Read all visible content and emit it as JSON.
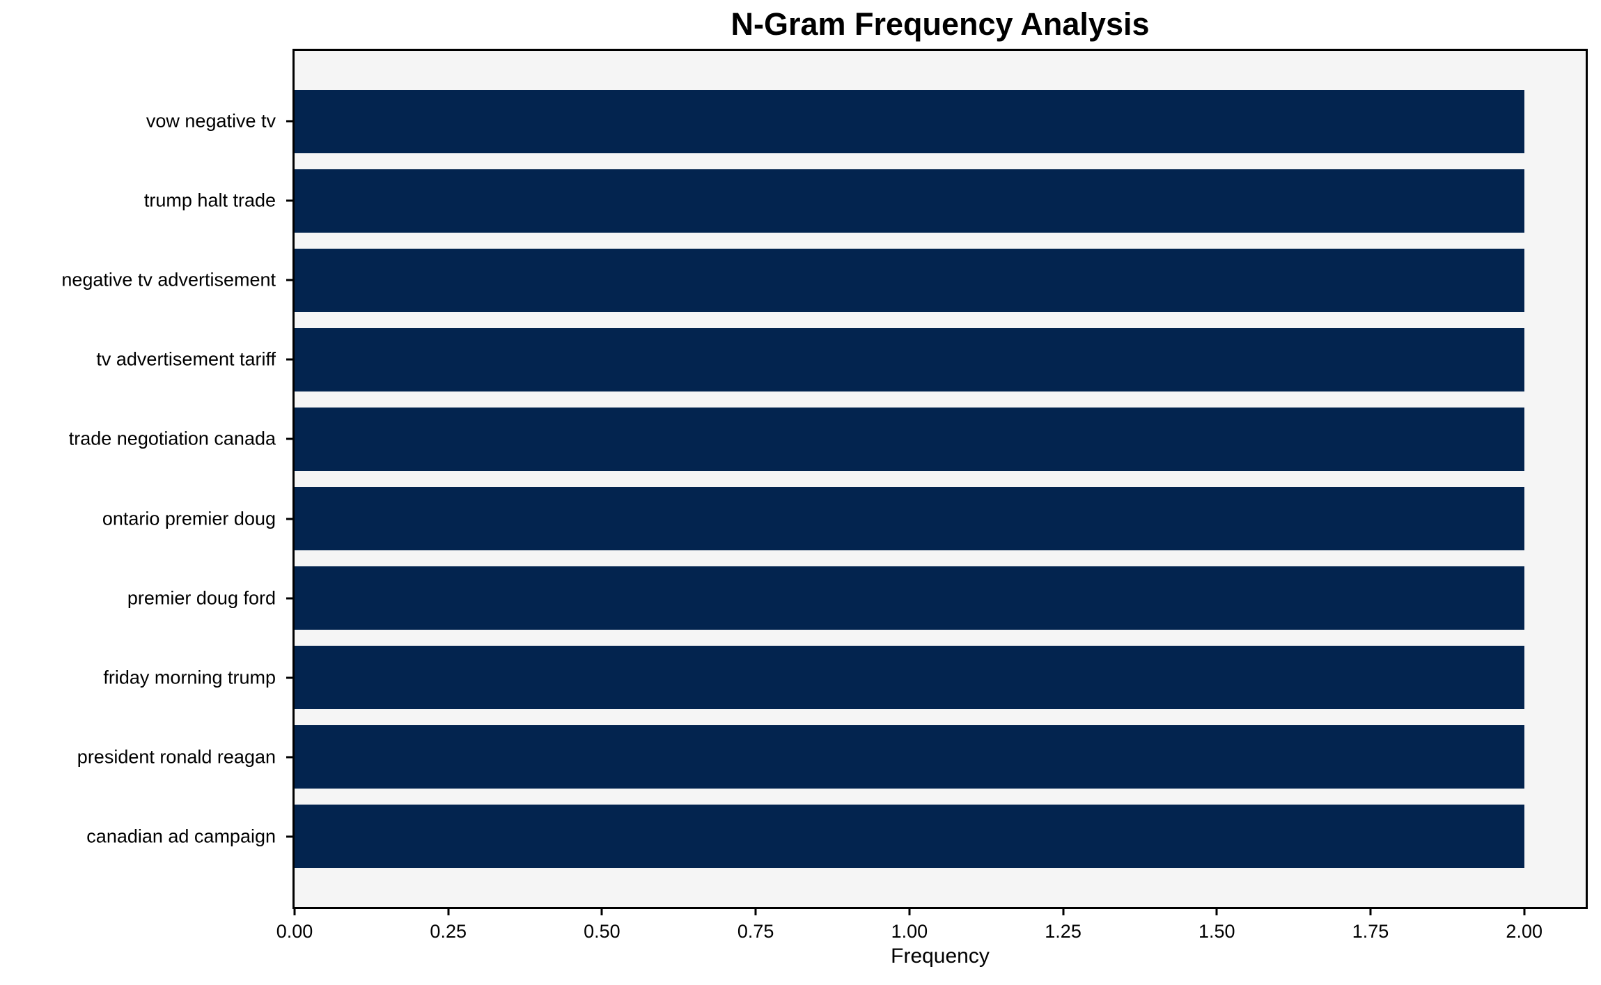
{
  "chart_data": {
    "type": "bar",
    "orientation": "horizontal",
    "title": "N-Gram Frequency Analysis",
    "xlabel": "Frequency",
    "categories": [
      "vow negative tv",
      "trump halt trade",
      "negative tv advertisement",
      "tv advertisement tariff",
      "trade negotiation canada",
      "ontario premier doug",
      "premier doug ford",
      "friday morning trump",
      "president ronald reagan",
      "canadian ad campaign"
    ],
    "values": [
      2,
      2,
      2,
      2,
      2,
      2,
      2,
      2,
      2,
      2
    ],
    "xlim": [
      0,
      2.1
    ],
    "xtick_labels": [
      "0.00",
      "0.25",
      "0.50",
      "0.75",
      "1.00",
      "1.25",
      "1.50",
      "1.75",
      "2.00"
    ],
    "xtick_values": [
      0,
      0.25,
      0.5,
      0.75,
      1.0,
      1.25,
      1.5,
      1.75,
      2.0
    ],
    "bar_height_fraction": 0.8,
    "grid": false,
    "colors": {
      "bar": "#03244f",
      "plot_background": "#f5f5f5",
      "figure_background": "#ffffff",
      "axis_line": "#000000",
      "text": "#000000"
    }
  }
}
